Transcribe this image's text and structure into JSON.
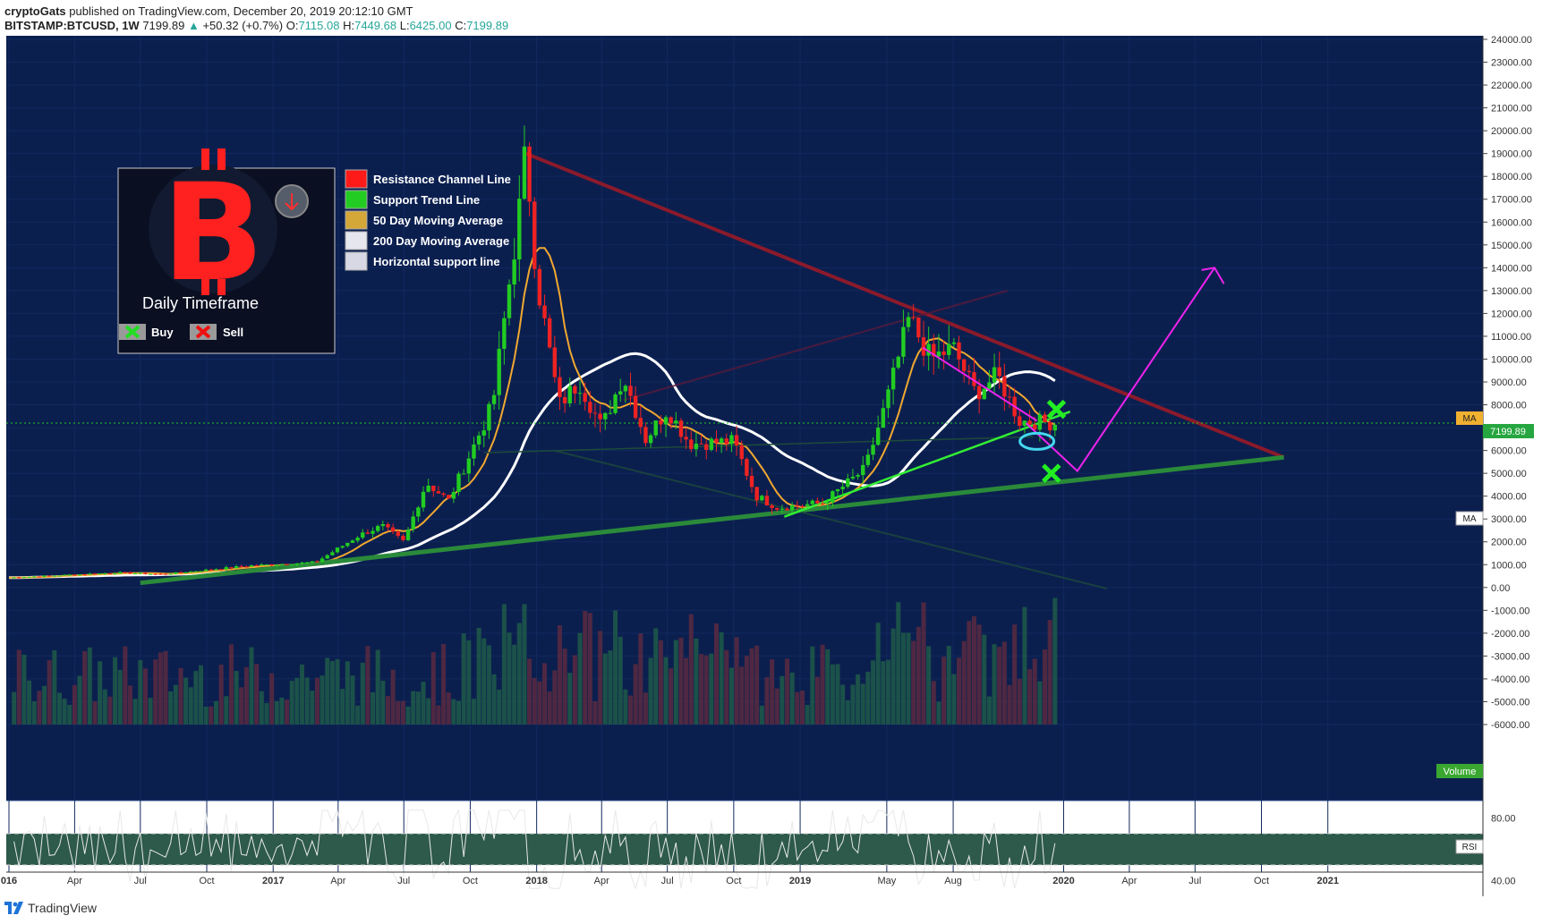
{
  "header": {
    "author": "cryptoGats",
    "published": "published on TradingView.com, December 20, 2019 20:12:10 GMT",
    "symbol": "BITSTAMP:BTCUSD, 1W",
    "last": "7199.89",
    "arrow": "▲",
    "change": "+50.32 (+0.7%)",
    "o_label": "O:",
    "o": "7115.08",
    "h_label": "H:",
    "h": "7449.68",
    "l_label": "L:",
    "l": "6425.00",
    "c_label": "C:",
    "c": "7199.89"
  },
  "legend": {
    "timeframe": "Daily Timeframe",
    "items": [
      {
        "label": "Resistance Channel Line",
        "color": "#ff1a1a"
      },
      {
        "label": "Support Trend Line",
        "color": "#22cc22"
      },
      {
        "label": "50 Day Moving Average",
        "color": "#d4a838"
      },
      {
        "label": "200 Day Moving Average",
        "color": "#e6e6ee"
      },
      {
        "label": "Horizontal support line",
        "color": "#d8d8e4"
      }
    ],
    "buy": "Buy",
    "sell": "Sell"
  },
  "price_tags": {
    "ma1": "MA",
    "price": "7199.89",
    "ma2": "MA",
    "volume": "Volume",
    "rsi": "RSI"
  },
  "footer": {
    "brand": "TradingView"
  },
  "colors": {
    "background": "#0b1f4f",
    "up": "#22cc22",
    "down": "#ee2222",
    "ma50": "#f0a830",
    "ma200": "#ffffff",
    "resistance": "#8b1a2a",
    "support": "#2a8a3a",
    "projection": "#ee22ee",
    "rsi_band": "#2d5a4a"
  },
  "chart_data": {
    "type": "candlestick",
    "x_ticks": [
      "016",
      "Apr",
      "Jul",
      "Oct",
      "2017",
      "Apr",
      "Jul",
      "Oct",
      "2018",
      "Apr",
      "Jul",
      "Oct",
      "2019",
      "May",
      "Aug",
      "2020",
      "Apr",
      "Jul",
      "Oct",
      "2021"
    ],
    "y_ticks": [
      "24000.00",
      "23000.00",
      "22000.00",
      "21000.00",
      "20000.00",
      "19000.00",
      "18000.00",
      "17000.00",
      "16000.00",
      "15000.00",
      "14000.00",
      "13000.00",
      "12000.00",
      "11000.00",
      "10000.00",
      "9000.00",
      "8000.00",
      "7000.00",
      "6000.00",
      "5000.00",
      "4000.00",
      "3000.00",
      "2000.00",
      "1000.00",
      "0.00",
      "-1000.00",
      "-2000.00",
      "-3000.00",
      "-4000.00",
      "-5000.00",
      "-6000.00"
    ],
    "ylim": [
      -6000,
      24000
    ],
    "price_keyframes": [
      [
        "2016-01",
        430
      ],
      [
        "2016-06",
        650
      ],
      [
        "2016-08",
        580
      ],
      [
        "2016-12",
        960
      ],
      [
        "2017-03",
        1100
      ],
      [
        "2017-05",
        2300
      ],
      [
        "2017-06",
        2700
      ],
      [
        "2017-07",
        2000
      ],
      [
        "2017-08",
        4600
      ],
      [
        "2017-09",
        3800
      ],
      [
        "2017-11",
        8000
      ],
      [
        "2017-12-10",
        17000
      ],
      [
        "2017-12-17",
        19200
      ],
      [
        "2018-01",
        13500
      ],
      [
        "2018-02",
        8000
      ],
      [
        "2018-03",
        9000
      ],
      [
        "2018-04",
        7000
      ],
      [
        "2018-05",
        9300
      ],
      [
        "2018-06",
        6500
      ],
      [
        "2018-07",
        7800
      ],
      [
        "2018-08",
        6300
      ],
      [
        "2018-10",
        6400
      ],
      [
        "2018-11",
        4000
      ],
      [
        "2018-12",
        3500
      ],
      [
        "2019-02",
        3700
      ],
      [
        "2019-04",
        5200
      ],
      [
        "2019-05",
        8200
      ],
      [
        "2019-06",
        11800
      ],
      [
        "2019-07",
        10000
      ],
      [
        "2019-08",
        10500
      ],
      [
        "2019-09",
        8500
      ],
      [
        "2019-10",
        9300
      ],
      [
        "2019-11",
        7300
      ],
      [
        "2019-12-20",
        7199.89
      ]
    ],
    "rsi_range": [
      40,
      80
    ],
    "rsi_ticks": [
      "80.00",
      "40.00"
    ],
    "legend_position": "top-left"
  }
}
